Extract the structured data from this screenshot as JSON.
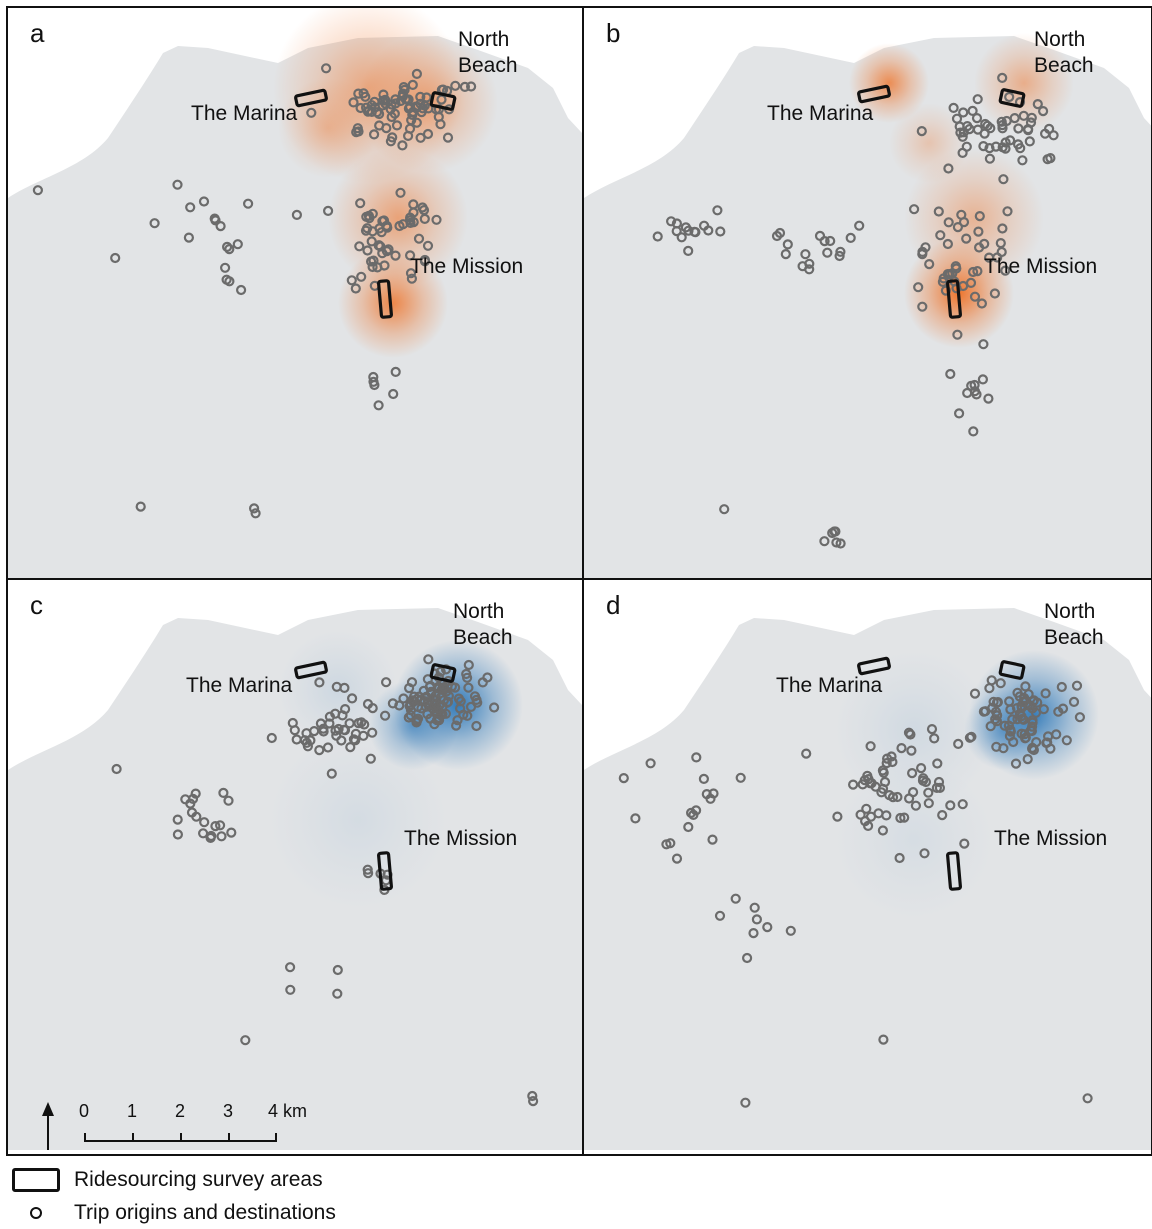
{
  "figure": {
    "panels": [
      {
        "letter": "a",
        "heat_color": "#ef6a1a",
        "labels": {
          "marina": "The Marina",
          "north_beach": "North\nBeach",
          "mission": "The Mission"
        }
      },
      {
        "letter": "b",
        "heat_color": "#ef6a1a",
        "labels": {
          "marina": "The Marina",
          "north_beach": "North\nBeach",
          "mission": "The Mission"
        }
      },
      {
        "letter": "c",
        "heat_color": "#1f6fb4",
        "labels": {
          "marina": "The Marina",
          "north_beach": "North\nBeach",
          "mission": "The Mission"
        }
      },
      {
        "letter": "d",
        "heat_color": "#1f6fb4",
        "labels": {
          "marina": "The Marina",
          "north_beach": "North\nBeach",
          "mission": "The Mission"
        }
      }
    ],
    "scale_bar": {
      "ticks": [
        "0",
        "1",
        "2",
        "3",
        "4 km"
      ]
    },
    "north_arrow": "north-arrow",
    "colors": {
      "land": "#e2e4e6",
      "background": "#ffffff",
      "points": "#6b6b6b",
      "survey_area": "#111111"
    }
  },
  "legend": {
    "survey_areas": "Ridesourcing survey areas",
    "trip_points": "Trip origins and destinations"
  }
}
